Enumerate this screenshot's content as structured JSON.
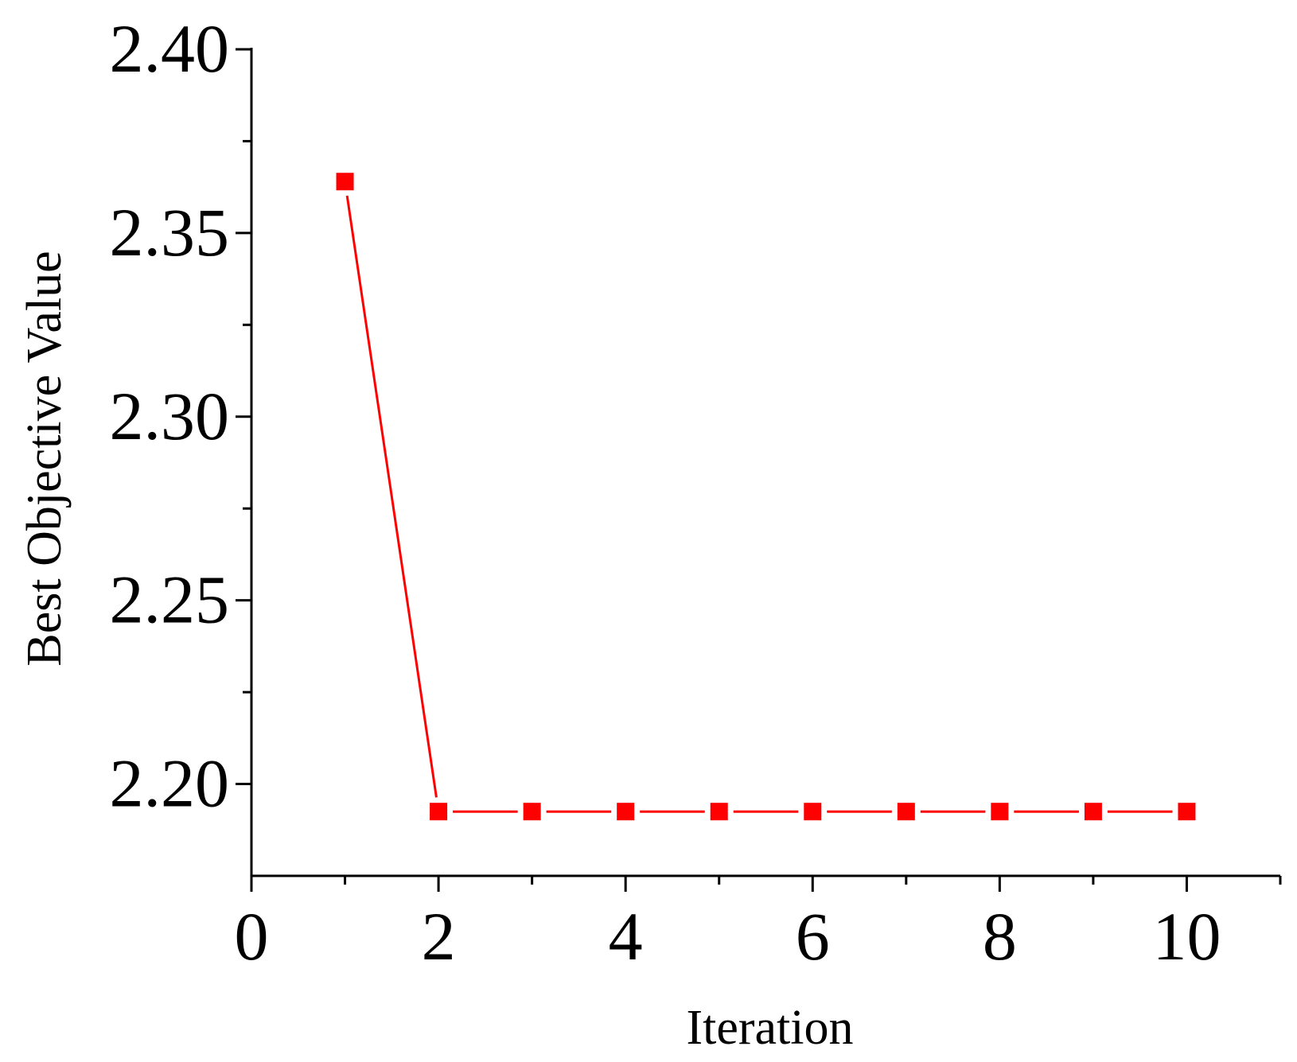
{
  "chart_data": {
    "type": "line",
    "title": "",
    "xlabel": "Iteration",
    "ylabel": "Best Objective Value",
    "xlim": [
      0,
      11
    ],
    "ylim": [
      2.175,
      2.4
    ],
    "x_ticks": [
      0,
      2,
      4,
      6,
      8,
      10
    ],
    "x_tick_labels": [
      "0",
      "2",
      "4",
      "6",
      "8",
      "10"
    ],
    "x_minor_ticks": [
      1,
      3,
      5,
      7,
      9,
      11
    ],
    "y_ticks": [
      2.2,
      2.25,
      2.3,
      2.35,
      2.4
    ],
    "y_tick_labels": [
      "2.20",
      "2.25",
      "2.30",
      "2.35",
      "2.40"
    ],
    "y_minor_ticks": [
      2.225,
      2.275,
      2.325,
      2.375
    ],
    "grid": false,
    "legend": "none",
    "series": [
      {
        "color": "#ff0000",
        "marker": "square",
        "x": [
          1,
          2,
          3,
          4,
          5,
          6,
          7,
          8,
          9,
          10
        ],
        "y": [
          2.364,
          2.1925,
          2.1925,
          2.1925,
          2.1925,
          2.1925,
          2.1925,
          2.1925,
          2.1925,
          2.1925
        ]
      }
    ]
  }
}
